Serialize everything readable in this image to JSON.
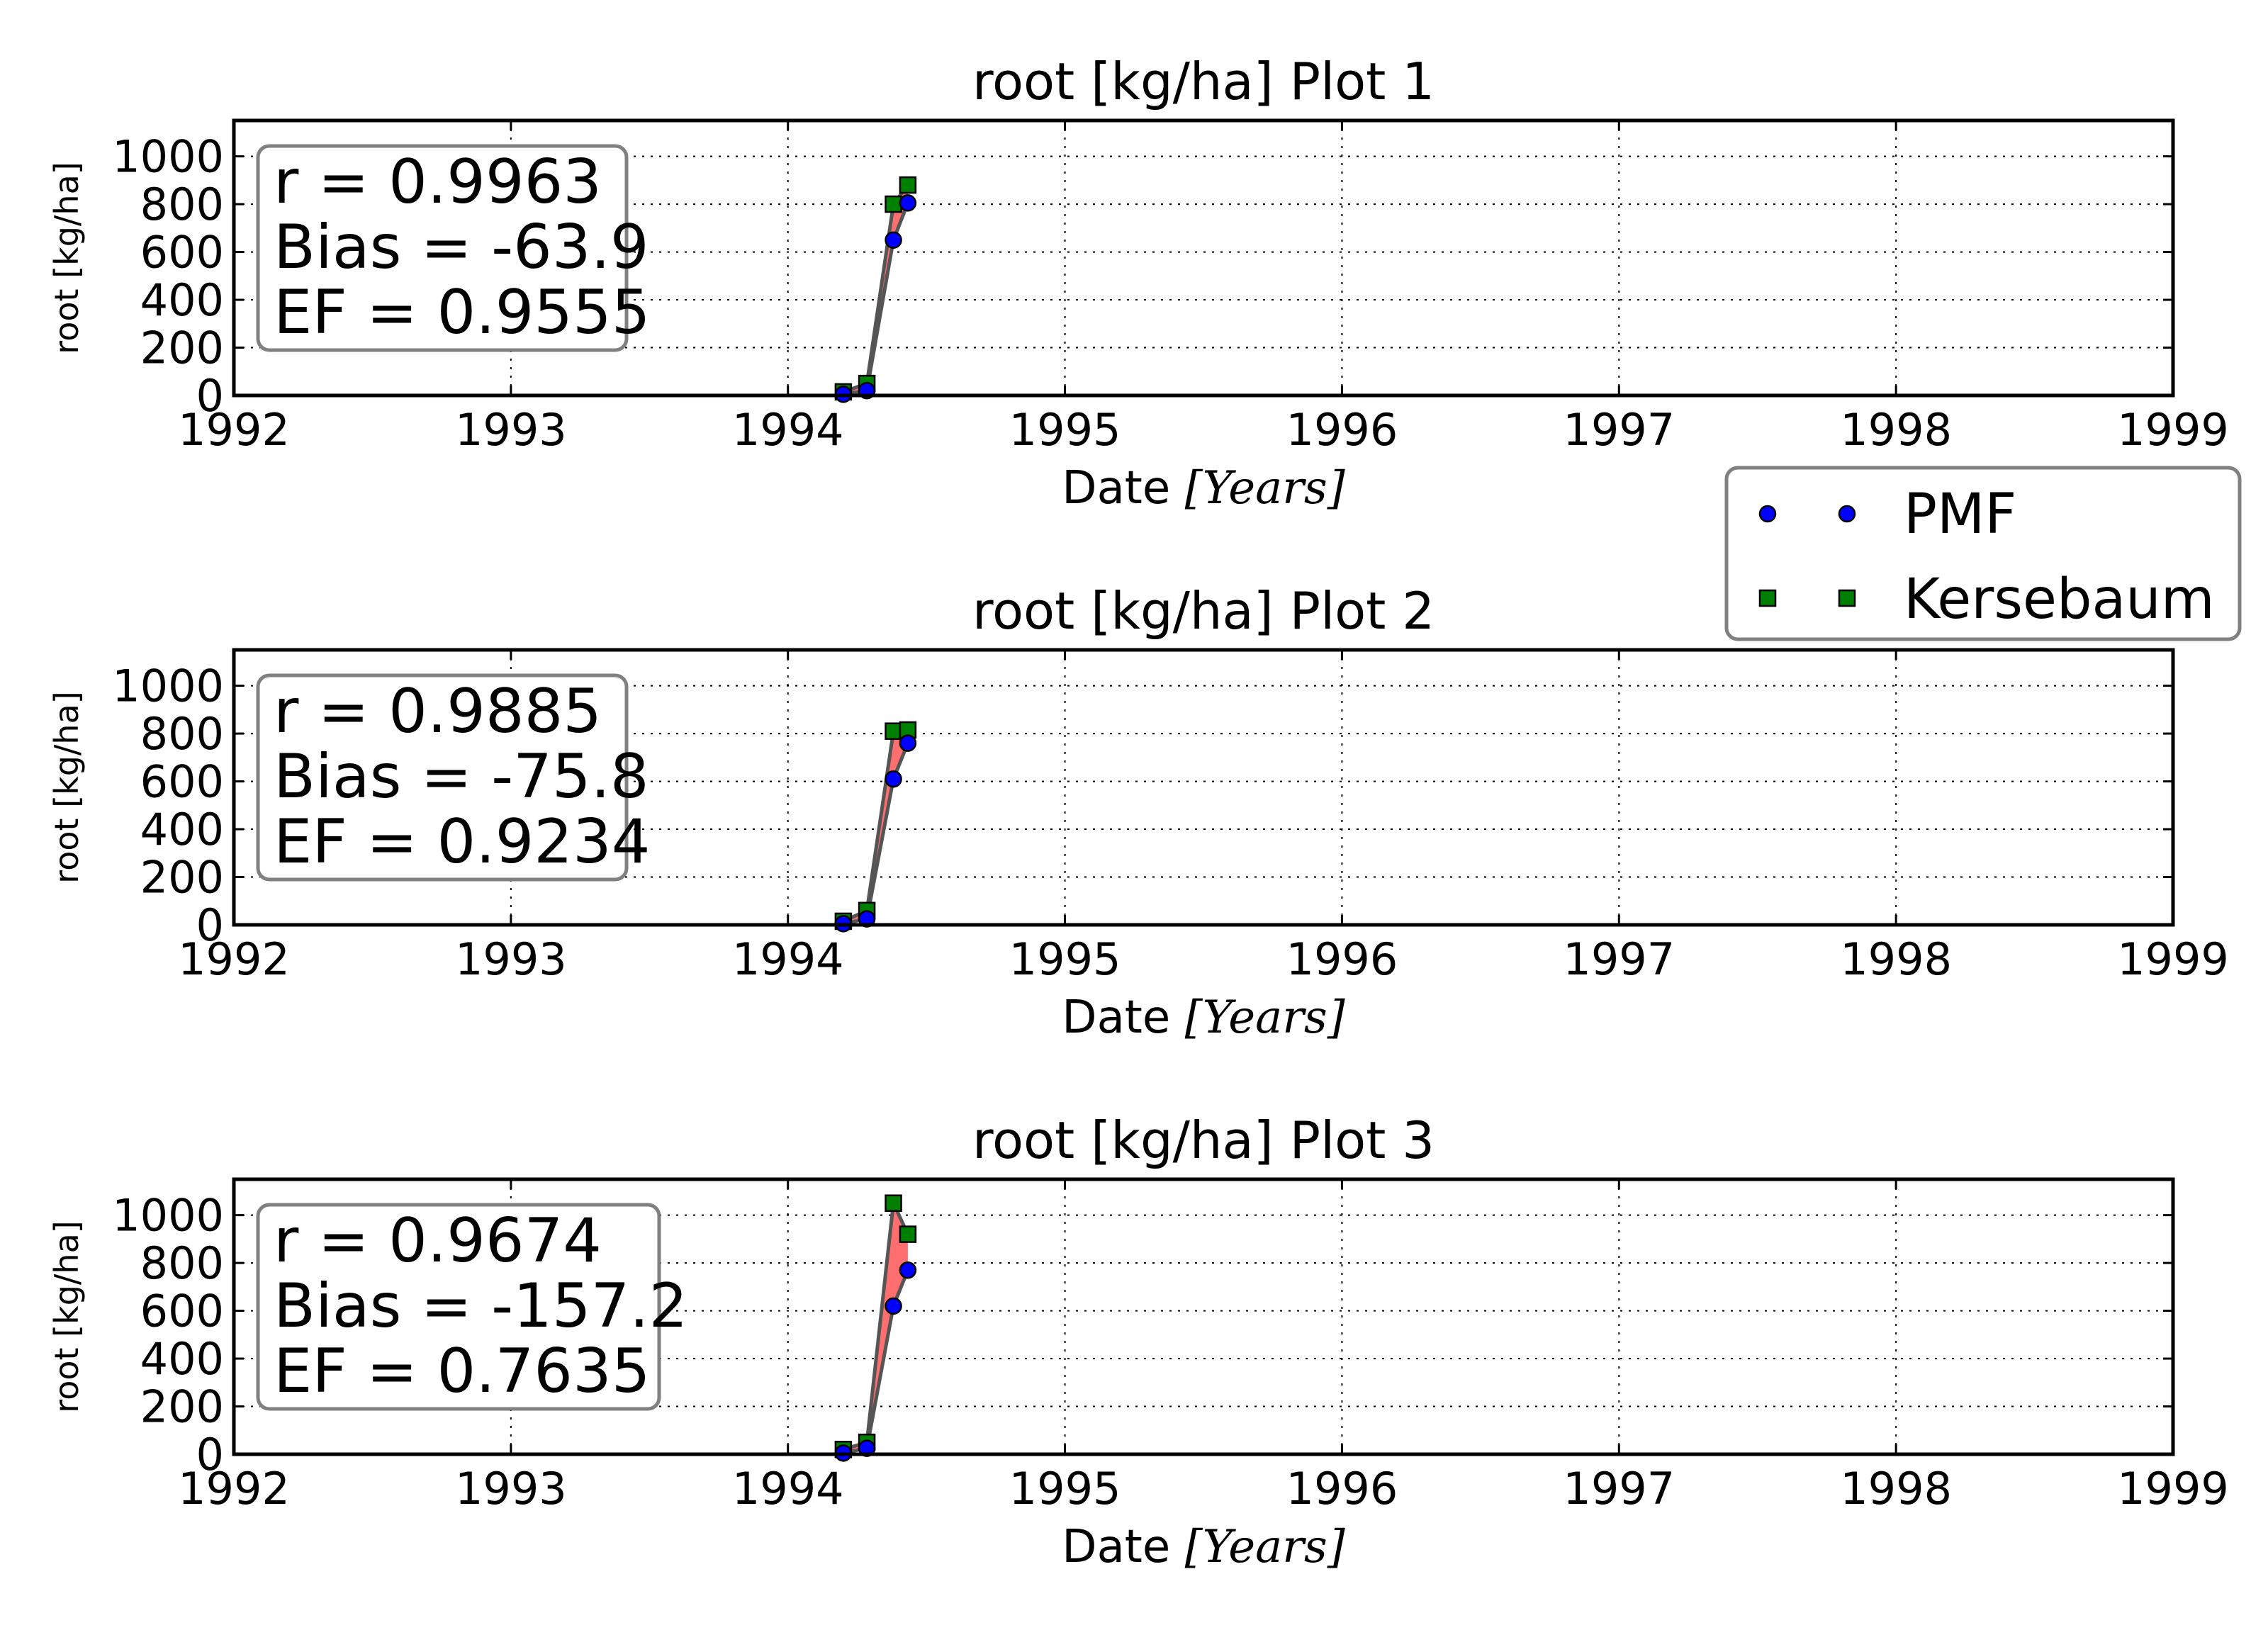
{
  "colors": {
    "pmf": "#0000ff",
    "kersebaum": "#008000",
    "fill": "#ff6f6f",
    "line": "#555555",
    "grid": "#000000"
  },
  "legend": {
    "position": "right, between plot 1 and plot 2",
    "items": [
      {
        "label": "PMF",
        "marker": "circle",
        "color": "#0000ff"
      },
      {
        "label": "Kersebaum",
        "marker": "square",
        "color": "#008000"
      }
    ]
  },
  "chart_data": [
    {
      "type": "line",
      "title": "root [kg/ha] Plot 1",
      "xlabel": "Date",
      "xlabel_unit": "Years",
      "ylabel": "root [kg/ha]",
      "xlim": [
        1992,
        1999
      ],
      "ylim": [
        0,
        1150
      ],
      "x_ticks": [
        "1992",
        "1993",
        "1994",
        "1995",
        "1996",
        "1997",
        "1998",
        "1999"
      ],
      "y_ticks": [
        "0",
        "200",
        "400",
        "600",
        "800",
        "1000"
      ],
      "grid": true,
      "stats": [
        "r = 0.9963",
        "Bias = -63.9",
        "EF = 0.9555"
      ],
      "series": [
        {
          "name": "PMF",
          "marker": "circle",
          "color": "#0000ff",
          "points": [
            [
              "1994-03-15",
              5
            ],
            [
              "1994-04-15",
              20
            ],
            [
              "1994-05-20",
              650
            ],
            [
              "1994-06-08",
              805
            ]
          ]
        },
        {
          "name": "Kersebaum",
          "marker": "square",
          "color": "#008000",
          "points": [
            [
              "1994-03-15",
              15
            ],
            [
              "1994-04-15",
              50
            ],
            [
              "1994-05-20",
              800
            ],
            [
              "1994-06-08",
              880
            ]
          ]
        }
      ]
    },
    {
      "type": "line",
      "title": "root [kg/ha] Plot 2",
      "xlabel": "Date",
      "xlabel_unit": "Years",
      "ylabel": "root [kg/ha]",
      "xlim": [
        1992,
        1999
      ],
      "ylim": [
        0,
        1150
      ],
      "x_ticks": [
        "1992",
        "1993",
        "1994",
        "1995",
        "1996",
        "1997",
        "1998",
        "1999"
      ],
      "y_ticks": [
        "0",
        "200",
        "400",
        "600",
        "800",
        "1000"
      ],
      "grid": true,
      "stats": [
        "r = 0.9885",
        "Bias = -75.8",
        "EF = 0.9234"
      ],
      "series": [
        {
          "name": "PMF",
          "marker": "circle",
          "color": "#0000ff",
          "points": [
            [
              "1994-03-15",
              5
            ],
            [
              "1994-04-15",
              25
            ],
            [
              "1994-05-20",
              610
            ],
            [
              "1994-06-08",
              760
            ]
          ]
        },
        {
          "name": "Kersebaum",
          "marker": "square",
          "color": "#008000",
          "points": [
            [
              "1994-03-15",
              15
            ],
            [
              "1994-04-15",
              60
            ],
            [
              "1994-05-20",
              810
            ],
            [
              "1994-06-08",
              815
            ]
          ]
        }
      ]
    },
    {
      "type": "line",
      "title": "root [kg/ha] Plot 3",
      "xlabel": "Date",
      "xlabel_unit": "Years",
      "ylabel": "root [kg/ha]",
      "xlim": [
        1992,
        1999
      ],
      "ylim": [
        0,
        1150
      ],
      "x_ticks": [
        "1992",
        "1993",
        "1994",
        "1995",
        "1996",
        "1997",
        "1998",
        "1999"
      ],
      "y_ticks": [
        "0",
        "200",
        "400",
        "600",
        "800",
        "1000"
      ],
      "grid": true,
      "stats": [
        "r = 0.9674",
        "Bias = -157.2",
        "EF = 0.7635"
      ],
      "series": [
        {
          "name": "PMF",
          "marker": "circle",
          "color": "#0000ff",
          "points": [
            [
              "1994-03-15",
              5
            ],
            [
              "1994-04-15",
              25
            ],
            [
              "1994-05-20",
              620
            ],
            [
              "1994-06-08",
              770
            ]
          ]
        },
        {
          "name": "Kersebaum",
          "marker": "square",
          "color": "#008000",
          "points": [
            [
              "1994-03-15",
              20
            ],
            [
              "1994-04-15",
              50
            ],
            [
              "1994-05-20",
              1050
            ],
            [
              "1994-06-08",
              920
            ]
          ]
        }
      ]
    }
  ]
}
